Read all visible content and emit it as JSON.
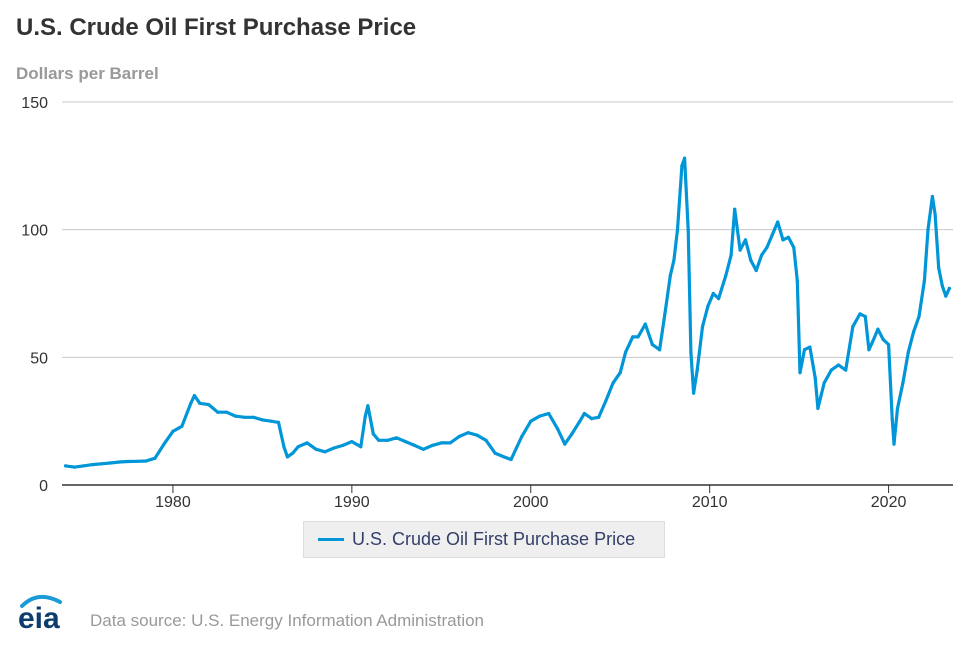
{
  "chart_data": {
    "type": "line",
    "title": "U.S. Crude Oil First Purchase Price",
    "subtitle": "Dollars per Barrel",
    "ylim": [
      0,
      150
    ],
    "y_ticks": [
      "0",
      "50",
      "100",
      "150"
    ],
    "xlim": [
      1973.8,
      2023.6
    ],
    "x_ticks": [
      "1980",
      "1990",
      "2000",
      "2010",
      "2020"
    ],
    "grid": true,
    "legend_position": "bottom-center",
    "colors": {
      "series": "#0096d7",
      "grid": "#c8c8c8",
      "axis": "#333333"
    },
    "series": [
      {
        "name": "U.S. Crude Oil First Purchase Price",
        "x": [
          1974.0,
          1974.5,
          1975.0,
          1975.5,
          1976.0,
          1976.5,
          1977.0,
          1977.5,
          1978.0,
          1978.5,
          1979.0,
          1979.5,
          1980.0,
          1980.5,
          1981.0,
          1981.2,
          1981.5,
          1982.0,
          1982.5,
          1983.0,
          1983.5,
          1984.0,
          1984.5,
          1985.0,
          1985.5,
          1985.9,
          1986.2,
          1986.4,
          1986.7,
          1987.0,
          1987.5,
          1988.0,
          1988.5,
          1989.0,
          1989.5,
          1990.0,
          1990.5,
          1990.75,
          1990.9,
          1991.2,
          1991.5,
          1992.0,
          1992.5,
          1993.0,
          1993.5,
          1994.0,
          1994.5,
          1995.0,
          1995.5,
          1996.0,
          1996.5,
          1997.0,
          1997.5,
          1998.0,
          1998.5,
          1998.9,
          1999.2,
          1999.5,
          2000.0,
          2000.5,
          2001.0,
          2001.5,
          2001.9,
          2002.3,
          2002.7,
          2003.0,
          2003.4,
          2003.8,
          2004.2,
          2004.6,
          2005.0,
          2005.3,
          2005.7,
          2006.0,
          2006.4,
          2006.8,
          2007.2,
          2007.5,
          2007.8,
          2008.0,
          2008.2,
          2008.45,
          2008.6,
          2008.8,
          2008.95,
          2009.1,
          2009.3,
          2009.6,
          2009.9,
          2010.2,
          2010.5,
          2010.9,
          2011.2,
          2011.4,
          2011.7,
          2012.0,
          2012.3,
          2012.6,
          2012.9,
          2013.2,
          2013.5,
          2013.8,
          2014.1,
          2014.4,
          2014.7,
          2014.9,
          2015.05,
          2015.3,
          2015.6,
          2015.9,
          2016.05,
          2016.4,
          2016.8,
          2017.2,
          2017.6,
          2018.0,
          2018.4,
          2018.7,
          2018.9,
          2019.1,
          2019.4,
          2019.7,
          2020.0,
          2020.2,
          2020.3,
          2020.5,
          2020.8,
          2021.1,
          2021.4,
          2021.7,
          2022.0,
          2022.2,
          2022.45,
          2022.6,
          2022.8,
          2023.0,
          2023.2,
          2023.4
        ],
        "values": [
          7.5,
          7.0,
          7.5,
          8.0,
          8.3,
          8.6,
          9.0,
          9.2,
          9.3,
          9.4,
          10.5,
          16.0,
          21.0,
          23.0,
          32.0,
          35.0,
          32.0,
          31.5,
          28.5,
          28.5,
          27.0,
          26.5,
          26.5,
          25.5,
          25.0,
          24.5,
          15.0,
          11.0,
          12.5,
          15.0,
          16.5,
          14.0,
          13.0,
          14.5,
          15.5,
          17.0,
          15.0,
          27.0,
          31.0,
          20.0,
          17.5,
          17.5,
          18.5,
          17.0,
          15.5,
          14.0,
          15.5,
          16.5,
          16.5,
          19.0,
          20.5,
          19.5,
          17.5,
          12.5,
          11.0,
          10.0,
          14.5,
          19.0,
          25.0,
          27.0,
          28.0,
          22.0,
          16.0,
          20.0,
          24.5,
          28.0,
          26.0,
          26.5,
          33.0,
          40.0,
          44.0,
          52.0,
          58.0,
          58.0,
          63.0,
          55.0,
          53.0,
          67.0,
          82.0,
          88.0,
          100.0,
          125.0,
          128.0,
          100.0,
          52.0,
          36.0,
          45.0,
          62.0,
          70.0,
          75.0,
          73.0,
          82.0,
          90.0,
          108.0,
          92.0,
          96.0,
          88.0,
          84.0,
          90.0,
          93.0,
          98.0,
          103.0,
          96.0,
          97.0,
          93.0,
          80.0,
          44.0,
          53.0,
          54.0,
          42.0,
          30.0,
          40.0,
          45.0,
          47.0,
          45.0,
          62.0,
          67.0,
          66.0,
          53.0,
          56.0,
          61.0,
          57.0,
          55.0,
          26.0,
          16.0,
          30.0,
          40.0,
          52.0,
          60.0,
          66.0,
          80.0,
          100.0,
          113.0,
          106.0,
          85.0,
          78.0,
          74.0,
          77.0
        ]
      }
    ]
  },
  "footer": {
    "logo_text": "eia",
    "source": "Data source: U.S. Energy Information Administration"
  }
}
